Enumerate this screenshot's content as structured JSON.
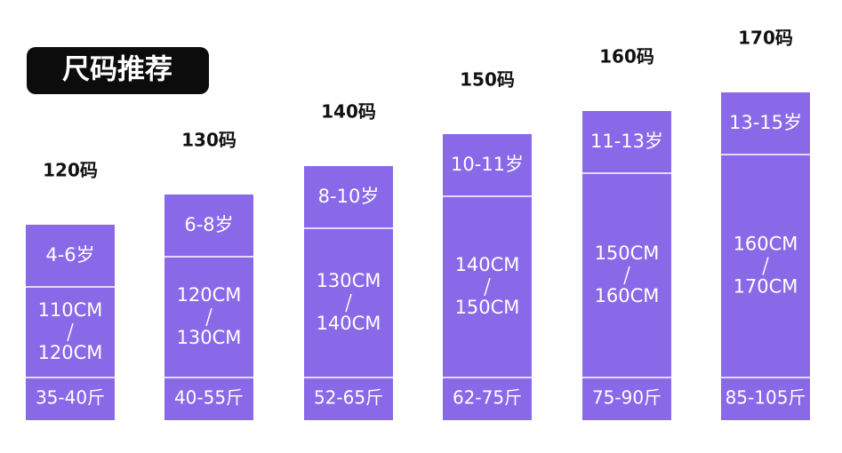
{
  "title": "尺码推荐",
  "columns": [
    {
      "size": "120码",
      "age": "4-6岁",
      "height_from": "110CM",
      "height_to": "120CM",
      "weight": "35-40斤"
    },
    {
      "size": "130码",
      "age": "6-8岁",
      "height_from": "120CM",
      "height_to": "130CM",
      "weight": "40-55斤"
    },
    {
      "size": "140码",
      "age": "8-10岁",
      "height_from": "130CM",
      "height_to": "140CM",
      "weight": "52-65斤"
    },
    {
      "size": "150码",
      "age": "10-11岁",
      "height_from": "140CM",
      "height_to": "150CM",
      "weight": "62-75斤"
    },
    {
      "size": "160码",
      "age": "11-13岁",
      "height_from": "150CM",
      "height_to": "160CM",
      "weight": "75-90斤"
    },
    {
      "size": "170码",
      "age": "13-15岁",
      "height_from": "160CM",
      "height_to": "170CM",
      "weight": "85-105斤"
    }
  ]
}
